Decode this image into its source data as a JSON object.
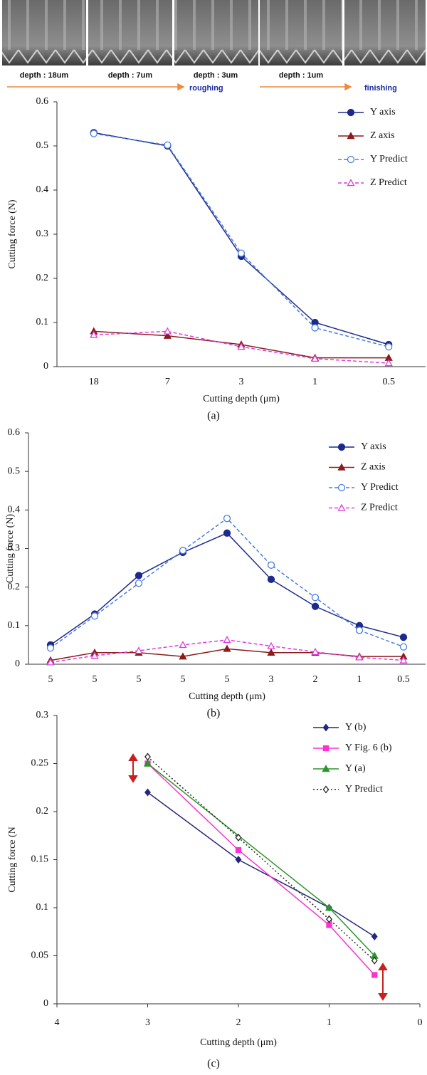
{
  "header": {
    "labels": [
      "depth : 18um",
      "depth : 7um",
      "depth : 3um",
      "depth : 1um"
    ],
    "stages": [
      "roughing",
      "finishing"
    ]
  },
  "chart_data": [
    {
      "type": "line",
      "caption": "(a)",
      "x_label": "Cutting depth (μm)",
      "y_label": "Cutting force (N)",
      "categories": [
        "18",
        "7",
        "3",
        "1",
        "0.5"
      ],
      "ylim": [
        0,
        0.6
      ],
      "yticks": [
        0,
        0.1,
        0.2,
        0.3,
        0.4,
        0.5,
        0.6
      ],
      "grid": false,
      "legend": "upper right",
      "series": [
        {
          "name": "Y axis",
          "color": "#1c2a8c",
          "marker": "circle",
          "marker_fill": true,
          "dash": false,
          "values": [
            0.53,
            0.5,
            0.25,
            0.1,
            0.05
          ]
        },
        {
          "name": "Z axis",
          "color": "#8b1c1c",
          "marker": "triangle",
          "marker_fill": true,
          "dash": false,
          "values": [
            0.08,
            0.07,
            0.05,
            0.02,
            0.02
          ]
        },
        {
          "name": "Y Predict",
          "color": "#4a7de0",
          "marker": "circle",
          "marker_fill": false,
          "dash": true,
          "values": [
            0.528,
            0.502,
            0.257,
            0.088,
            0.045
          ]
        },
        {
          "name": "Z Predict",
          "color": "#e03ce0",
          "marker": "triangle",
          "marker_fill": false,
          "dash": true,
          "values": [
            0.072,
            0.08,
            0.045,
            0.018,
            0.008
          ]
        }
      ]
    },
    {
      "type": "line",
      "caption": "(b)",
      "x_label": "Cutting depth (μm)",
      "y_label": "Cutting force (N)",
      "categories": [
        "5",
        "5",
        "5",
        "5",
        "5",
        "3",
        "2",
        "1",
        "0.5"
      ],
      "ylim": [
        0,
        0.6
      ],
      "yticks": [
        0,
        0.1,
        0.2,
        0.3,
        0.4,
        0.5,
        0.6
      ],
      "grid": false,
      "legend": "upper right",
      "series": [
        {
          "name": "Y axis",
          "color": "#1c2a8c",
          "marker": "circle",
          "marker_fill": true,
          "dash": false,
          "values": [
            0.05,
            0.13,
            0.23,
            0.29,
            0.34,
            0.22,
            0.15,
            0.1,
            0.07
          ]
        },
        {
          "name": "Z axis",
          "color": "#8b1c1c",
          "marker": "triangle",
          "marker_fill": true,
          "dash": false,
          "values": [
            0.01,
            0.03,
            0.03,
            0.02,
            0.04,
            0.03,
            0.03,
            0.02,
            0.02
          ]
        },
        {
          "name": "Y Predict",
          "color": "#4a7de0",
          "marker": "circle",
          "marker_fill": false,
          "dash": true,
          "values": [
            0.042,
            0.125,
            0.21,
            0.295,
            0.378,
            0.257,
            0.173,
            0.088,
            0.045
          ]
        },
        {
          "name": "Z Predict",
          "color": "#e03ce0",
          "marker": "triangle",
          "marker_fill": false,
          "dash": true,
          "values": [
            0.005,
            0.022,
            0.035,
            0.05,
            0.063,
            0.047,
            0.032,
            0.018,
            0.01
          ]
        }
      ]
    },
    {
      "type": "line",
      "caption": "(c)",
      "x_label": "Cutting depth (μm)",
      "y_label": "Cutting force (N",
      "xlim": [
        4,
        0
      ],
      "xticks": [
        4,
        3,
        2,
        1,
        0
      ],
      "ylim": [
        0,
        0.3
      ],
      "yticks": [
        0,
        0.05,
        0.1,
        0.15,
        0.2,
        0.25,
        0.3
      ],
      "grid": false,
      "legend": "upper right",
      "series": [
        {
          "name": "Y (b)",
          "color": "#26287a",
          "marker": "diamond",
          "marker_fill": true,
          "dash": false,
          "x": [
            3,
            2,
            1,
            0.5
          ],
          "values": [
            0.22,
            0.15,
            0.1,
            0.07
          ]
        },
        {
          "name": "Y Fig. 6 (b)",
          "color": "#ff30d0",
          "marker": "square",
          "marker_fill": true,
          "dash": false,
          "x": [
            3,
            2,
            1,
            0.5
          ],
          "values": [
            0.25,
            0.16,
            0.082,
            0.03
          ]
        },
        {
          "name": "Y (a)",
          "color": "#2a962a",
          "marker": "triangle",
          "marker_fill": true,
          "dash": false,
          "x": [
            3,
            1,
            0.5
          ],
          "values": [
            0.25,
            0.1,
            0.05
          ]
        },
        {
          "name": "Y Predict",
          "color": "#222222",
          "marker": "diamond",
          "marker_fill": false,
          "dash": "dot",
          "x": [
            3,
            2,
            1,
            0.5
          ],
          "values": [
            0.257,
            0.173,
            0.088,
            0.045
          ]
        }
      ]
    }
  ]
}
